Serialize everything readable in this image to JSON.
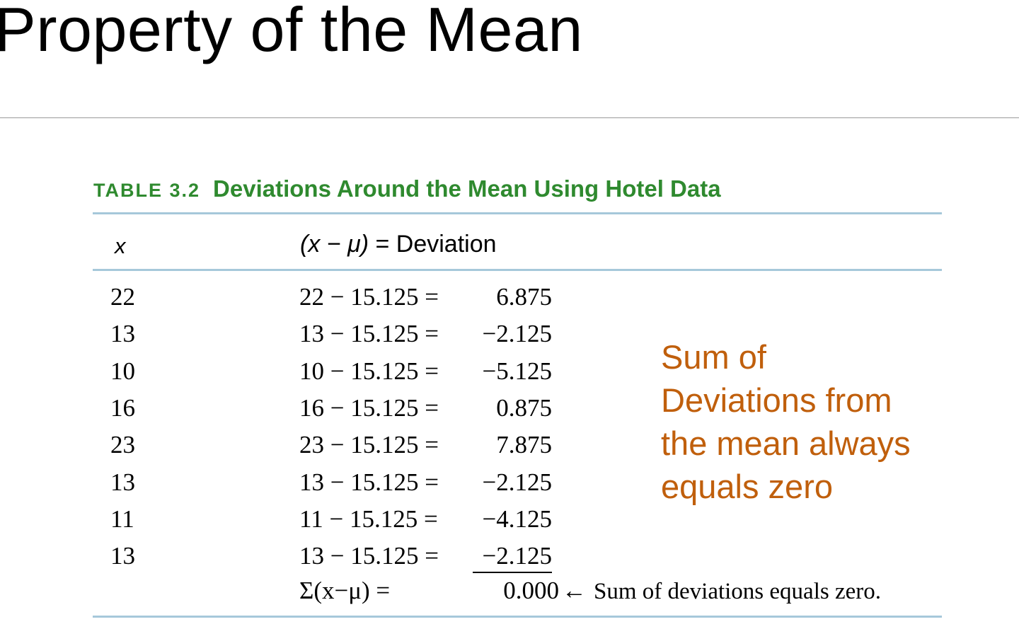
{
  "slide": {
    "title": "Property of the Mean"
  },
  "table": {
    "label": "TABLE 3.2",
    "caption": "Deviations Around the Mean Using Hotel Data",
    "header_x": "x",
    "header_dev_left": "(x − μ)",
    "header_dev_right": " = Deviation",
    "mean": "15.125",
    "rows": [
      {
        "x": "22",
        "expr": "22 − 15.125 =",
        "result": "6.875"
      },
      {
        "x": "13",
        "expr": "13 − 15.125 =",
        "result": "−2.125"
      },
      {
        "x": "10",
        "expr": "10 − 15.125 =",
        "result": "−5.125"
      },
      {
        "x": "16",
        "expr": "16 − 15.125 =",
        "result": "0.875"
      },
      {
        "x": "23",
        "expr": "23 − 15.125 =",
        "result": "7.875"
      },
      {
        "x": "13",
        "expr": "13 − 15.125 =",
        "result": "−2.125"
      },
      {
        "x": "11",
        "expr": "11 − 15.125 =",
        "result": "−4.125"
      },
      {
        "x": "13",
        "expr": "13 − 15.125 =",
        "result": "−2.125"
      }
    ],
    "sum_label": "Σ(x−μ) =",
    "sum_total": "0.000",
    "sum_arrow": "←",
    "sum_note": "Sum of deviations equals zero."
  },
  "callout": {
    "lines": [
      "Sum of",
      "Deviations from",
      "the mean always",
      "equals zero"
    ],
    "color": "#c05f0c"
  },
  "colors": {
    "caption_green": "#2f8a2f",
    "rule_blue": "#a6c8da"
  }
}
